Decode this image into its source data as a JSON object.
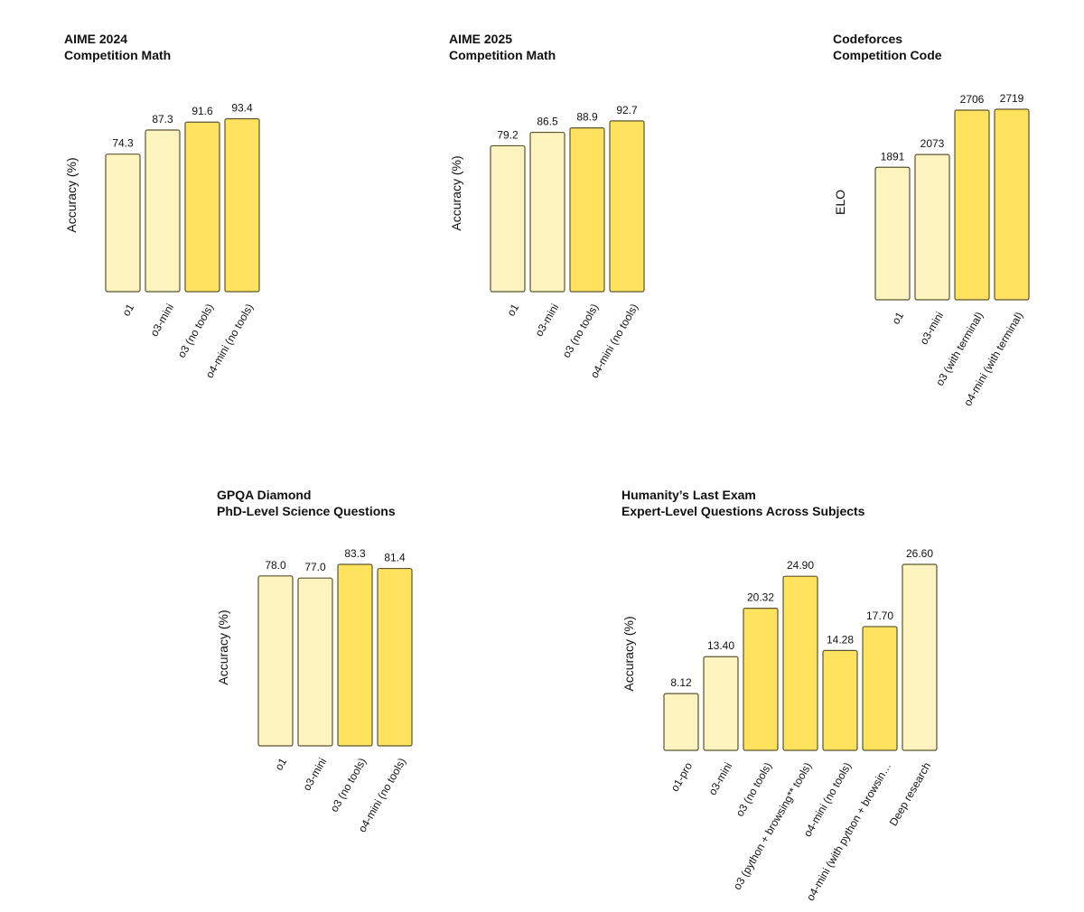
{
  "colors": {
    "light": "#FEF4C0",
    "dark": "#FFE25E",
    "stroke": "#5C5430"
  },
  "chart_data": [
    {
      "type": "bar",
      "title": "AIME 2024",
      "subtitle": "Competition Math",
      "ylabel": "Accuracy (%)",
      "categories": [
        "o1",
        "o3-mini",
        "o3 (no tools)",
        "o4-mini (no tools)"
      ],
      "values": [
        74.3,
        87.3,
        91.6,
        93.4
      ],
      "labels": [
        "74.3",
        "87.3",
        "91.6",
        "93.4"
      ],
      "shade": [
        "light",
        "light",
        "dark",
        "dark"
      ],
      "ylim": [
        0,
        100
      ]
    },
    {
      "type": "bar",
      "title": "AIME 2025",
      "subtitle": "Competition Math",
      "ylabel": "Accuracy (%)",
      "categories": [
        "o1",
        "o3-mini",
        "o3 (no tools)",
        "o4-mini (no tools)"
      ],
      "values": [
        79.2,
        86.5,
        88.9,
        92.7
      ],
      "labels": [
        "79.2",
        "86.5",
        "88.9",
        "92.7"
      ],
      "shade": [
        "light",
        "light",
        "dark",
        "dark"
      ],
      "ylim": [
        0,
        100
      ]
    },
    {
      "type": "bar",
      "title": "Codeforces",
      "subtitle": "Competition Code",
      "ylabel": "ELO",
      "categories": [
        "o1",
        "o3-mini",
        "o3 (with terminal)",
        "o4-mini (with terminal)"
      ],
      "values": [
        1891,
        2073,
        2706,
        2719
      ],
      "labels": [
        "1891",
        "2073",
        "2706",
        "2719"
      ],
      "shade": [
        "light",
        "light",
        "dark",
        "dark"
      ],
      "ylim": [
        0,
        2719
      ]
    },
    {
      "type": "bar",
      "title": "GPQA Diamond",
      "subtitle": "PhD-Level Science Questions",
      "ylabel": "Accuracy (%)",
      "categories": [
        "o1",
        "o3-mini",
        "o3 (no tools)",
        "o4-mini (no tools)"
      ],
      "values": [
        78.0,
        77.0,
        83.3,
        81.4
      ],
      "labels": [
        "78.0",
        "77.0",
        "83.3",
        "81.4"
      ],
      "shade": [
        "light",
        "light",
        "dark",
        "dark"
      ],
      "ylim": [
        0,
        83.3
      ]
    },
    {
      "type": "bar",
      "title": "Humanity’s Last Exam",
      "subtitle": "Expert-Level Questions Across Subjects",
      "ylabel": "Accuracy (%)",
      "categories": [
        "o1-pro",
        "o3-mini",
        "o3 (no tools)",
        "o3 (python + browsing** tools)",
        "o4-mini (no tools)",
        "o4-mini (with python + browsin…",
        "Deep research"
      ],
      "values": [
        8.12,
        13.4,
        20.32,
        24.9,
        14.28,
        17.7,
        26.6
      ],
      "labels": [
        "8.12",
        "13.40",
        "20.32",
        "24.90",
        "14.28",
        "17.70",
        "26.60"
      ],
      "shade": [
        "light",
        "light",
        "dark",
        "dark",
        "dark",
        "dark",
        "light"
      ],
      "ylim": [
        0,
        26.6
      ]
    }
  ]
}
